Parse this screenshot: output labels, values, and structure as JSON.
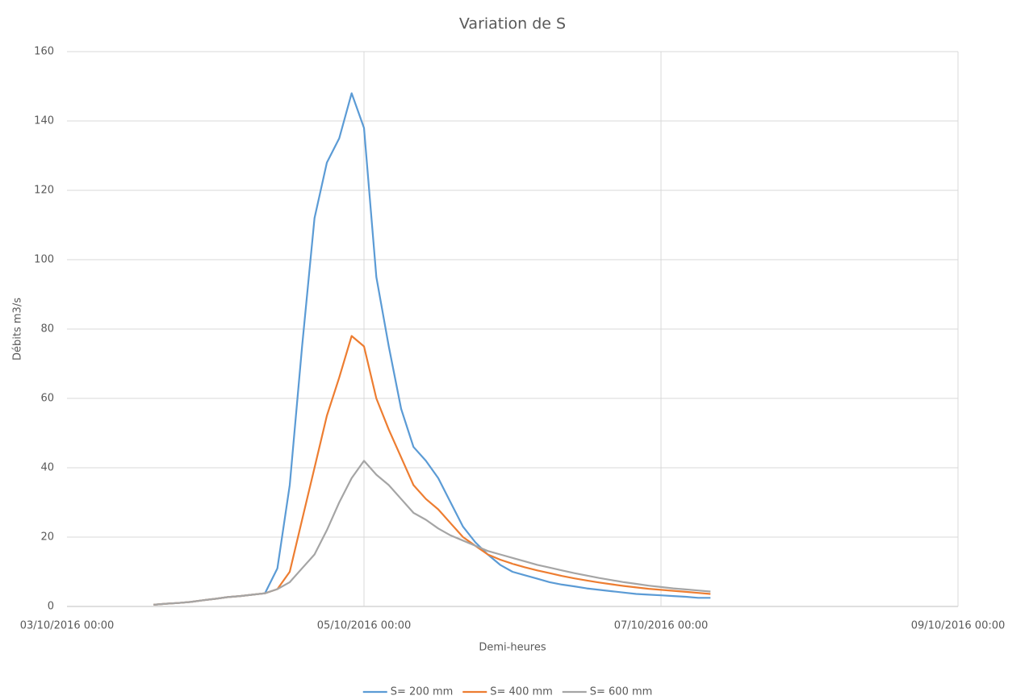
{
  "chart_data": {
    "type": "line",
    "title": "Variation de S",
    "x_label": "Demi-heures",
    "y_label": "Débits m3/s",
    "x": [
      "03/10/2016 14:00",
      "03/10/2016 16:00",
      "03/10/2016 18:00",
      "03/10/2016 20:00",
      "03/10/2016 22:00",
      "04/10/2016 00:00",
      "04/10/2016 02:00",
      "04/10/2016 04:00",
      "04/10/2016 06:00",
      "04/10/2016 08:00",
      "04/10/2016 10:00",
      "04/10/2016 12:00",
      "04/10/2016 14:00",
      "04/10/2016 16:00",
      "04/10/2016 18:00",
      "04/10/2016 20:00",
      "04/10/2016 22:00",
      "05/10/2016 00:00",
      "05/10/2016 02:00",
      "05/10/2016 04:00",
      "05/10/2016 06:00",
      "05/10/2016 08:00",
      "05/10/2016 10:00",
      "05/10/2016 12:00",
      "05/10/2016 14:00",
      "05/10/2016 16:00",
      "05/10/2016 18:00",
      "05/10/2016 20:00",
      "05/10/2016 22:00",
      "06/10/2016 00:00",
      "06/10/2016 02:00",
      "06/10/2016 04:00",
      "06/10/2016 06:00",
      "06/10/2016 08:00",
      "06/10/2016 10:00",
      "06/10/2016 12:00",
      "06/10/2016 14:00",
      "06/10/2016 16:00",
      "06/10/2016 18:00",
      "06/10/2016 20:00",
      "06/10/2016 22:00",
      "07/10/2016 00:00",
      "07/10/2016 02:00",
      "07/10/2016 04:00",
      "07/10/2016 06:00",
      "07/10/2016 08:00"
    ],
    "series": [
      {
        "name": "S= 200 mm",
        "color": "#5b9bd5",
        "values": [
          0.5,
          0.8,
          1.0,
          1.3,
          1.8,
          2.2,
          2.7,
          3.0,
          3.4,
          3.8,
          11,
          35,
          75,
          112,
          128,
          135,
          148,
          138,
          95,
          75,
          57,
          46,
          42,
          37,
          30,
          23,
          18.5,
          15,
          12,
          10,
          9,
          8,
          7,
          6.3,
          5.8,
          5.2,
          4.8,
          4.4,
          4.0,
          3.6,
          3.4,
          3.2,
          3.0,
          2.8,
          2.5,
          2.5
        ]
      },
      {
        "name": "S= 400 mm",
        "color": "#ed7d31",
        "values": [
          0.5,
          0.8,
          1.0,
          1.3,
          1.8,
          2.2,
          2.7,
          3.0,
          3.4,
          3.8,
          5,
          10,
          25,
          40,
          55,
          66,
          78,
          75,
          60,
          51,
          43,
          35,
          31,
          28,
          24,
          20,
          17.5,
          15,
          13.5,
          12.3,
          11.3,
          10.4,
          9.6,
          8.8,
          8.1,
          7.5,
          6.9,
          6.4,
          5.9,
          5.5,
          5.1,
          4.8,
          4.5,
          4.2,
          3.9,
          3.6
        ]
      },
      {
        "name": "S= 600 mm",
        "color": "#a5a5a5",
        "values": [
          0.5,
          0.8,
          1.0,
          1.3,
          1.8,
          2.2,
          2.7,
          3.0,
          3.4,
          3.8,
          5,
          7,
          11,
          15,
          22,
          30,
          37,
          42,
          38,
          35,
          31,
          27,
          25,
          22.5,
          20.5,
          19,
          17.5,
          16,
          15,
          14,
          13,
          12,
          11.2,
          10.4,
          9.6,
          8.9,
          8.2,
          7.6,
          7,
          6.5,
          6,
          5.6,
          5.2,
          4.9,
          4.6,
          4.3
        ]
      }
    ],
    "xlim": [
      "03/10/2016 00:00",
      "09/10/2016 00:00"
    ],
    "xticks": [
      "03/10/2016 00:00",
      "05/10/2016 00:00",
      "07/10/2016 00:00",
      "09/10/2016 00:00"
    ],
    "ylim": [
      0,
      160
    ],
    "yticks": [
      0,
      20,
      40,
      60,
      80,
      100,
      120,
      140,
      160
    ],
    "grid": true,
    "legend": "bottom"
  }
}
